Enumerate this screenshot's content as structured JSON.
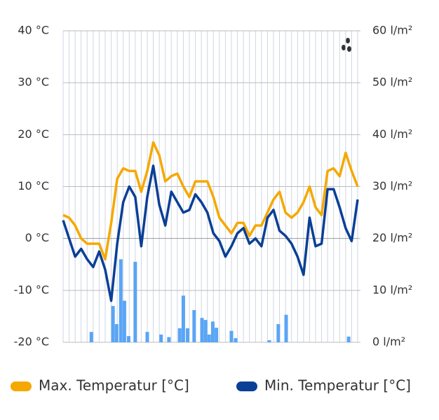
{
  "chart_data": {
    "type": "line",
    "x": [
      0,
      1,
      2,
      3,
      4,
      5,
      6,
      7,
      8,
      9,
      10,
      11,
      12,
      13,
      14,
      15,
      16,
      17,
      18,
      19,
      20,
      21,
      22,
      23,
      24,
      25,
      26,
      27,
      28,
      29,
      30,
      31,
      32,
      33,
      34,
      35,
      36,
      37,
      38,
      39,
      40,
      41,
      42,
      43,
      44,
      45,
      46,
      47,
      48,
      49
    ],
    "xlim": [
      0,
      49
    ],
    "ylim": [
      -20,
      40
    ],
    "yticks": [
      {
        "value": 40,
        "label": "40 °C"
      },
      {
        "value": 30,
        "label": "30 °C"
      },
      {
        "value": 20,
        "label": "20 °C"
      },
      {
        "value": 10,
        "label": "10 °C"
      },
      {
        "value": 0,
        "label": "0 °C"
      },
      {
        "value": -10,
        "label": "-10 °C"
      },
      {
        "value": -20,
        "label": "-20 °C"
      }
    ],
    "y2lim": [
      0,
      60
    ],
    "y2ticks": [
      {
        "value": 60,
        "label": "60 l/m²"
      },
      {
        "value": 50,
        "label": "50 l/m²"
      },
      {
        "value": 40,
        "label": "40 l/m²"
      },
      {
        "value": 30,
        "label": "30 l/m²"
      },
      {
        "value": 20,
        "label": "20 l/m²"
      },
      {
        "value": 10,
        "label": "10 l/m²"
      },
      {
        "value": 0,
        "label": "0 l/m²"
      }
    ],
    "grid": true,
    "series": [
      {
        "name": "Max.  Temperatur [°C]",
        "color": "#f5a800",
        "values": [
          4.5,
          4,
          2.5,
          0,
          -1,
          -1,
          -1,
          -4,
          3,
          11.5,
          13.5,
          13,
          13,
          9,
          13,
          18.5,
          16,
          11,
          12,
          12.5,
          10,
          8,
          11,
          11,
          11,
          8,
          4,
          2.5,
          1,
          3,
          3,
          0.5,
          2.5,
          2.5,
          5,
          7.5,
          9,
          5,
          4,
          5,
          7,
          10,
          6,
          4.5,
          13,
          13.5,
          12,
          16.5,
          13,
          10
        ]
      },
      {
        "name": "Min.  Temperatur [°C]",
        "color": "#0a3f96",
        "values": [
          3.5,
          0,
          -3.5,
          -2,
          -4,
          -5.5,
          -2.5,
          -6,
          -12,
          -1,
          7,
          10,
          8,
          -1.5,
          8,
          14,
          6.5,
          2.5,
          9,
          7,
          5,
          5.5,
          8.5,
          7,
          5,
          1,
          -0.5,
          -3.5,
          -1.5,
          1,
          2,
          -1,
          0,
          -1.5,
          4,
          5.5,
          1.5,
          0.5,
          -1,
          -3.5,
          -7,
          4,
          -1.5,
          -1,
          9.5,
          9.5,
          6,
          2,
          -0.5,
          7.5
        ]
      },
      {
        "type": "bar",
        "axis": "y2",
        "color": "#5aa5f5",
        "x": [
          4.7,
          8.3,
          8.9,
          9.6,
          10.2,
          10.9,
          12.0,
          14.0,
          16.3,
          17.6,
          19.4,
          20.0,
          20.7,
          21.8,
          23.1,
          23.7,
          24.3,
          24.9,
          25.5,
          28.0,
          28.7,
          34.3,
          35.8,
          37.1,
          47.5
        ],
        "values": [
          2,
          7,
          3.5,
          16,
          8,
          1.2,
          15.5,
          2,
          1.5,
          1,
          2.7,
          9,
          2.7,
          6.2,
          4.7,
          4.3,
          1.5,
          4,
          2.8,
          2.2,
          0.8,
          0.4,
          3.5,
          5.3,
          1.1
        ]
      }
    ]
  }
}
